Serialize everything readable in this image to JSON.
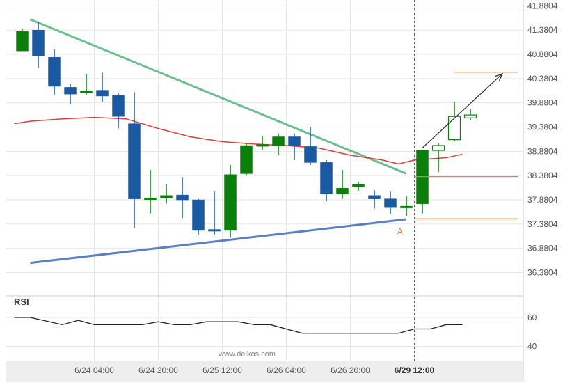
{
  "watermark": "www.delkos.com",
  "rsi_label": "RSI",
  "pattern_point_label": "A",
  "colors": {
    "bull": "#0a7f0a",
    "bear": "#1a5aa3",
    "ma": "#e23b3b",
    "upper_trend": "#6bbf8f",
    "lower_trend": "#5b7fc4",
    "levels": "#f07c3a",
    "projection": "#333333",
    "rsi_line": "#222222",
    "grid": "#e6e6e6",
    "axis_text": "#555555"
  },
  "chart_data": {
    "type": "candlestick",
    "title": "",
    "y_ticks": [
      "41.8804",
      "41.3804",
      "40.8804",
      "40.3804",
      "39.8804",
      "39.3804",
      "38.8804",
      "38.3804",
      "37.8804",
      "37.3804",
      "36.8804",
      "36.3804"
    ],
    "ylim": [
      35.9,
      42.0
    ],
    "x_ticks": [
      {
        "label": "6/24 04:00",
        "index": 4.5
      },
      {
        "label": "6/24 20:00",
        "index": 8.5
      },
      {
        "label": "6/25 12:00",
        "index": 12.5
      },
      {
        "label": "6/26 04:00",
        "index": 16.5
      },
      {
        "label": "6/26 20:00",
        "index": 20.5
      },
      {
        "label": "6/29 12:00",
        "index": 24.5,
        "bold": true
      }
    ],
    "candles": [
      {
        "o": 40.95,
        "h": 41.4,
        "l": 40.95,
        "c": 41.35
      },
      {
        "o": 41.38,
        "h": 41.55,
        "l": 40.6,
        "c": 40.85
      },
      {
        "o": 40.82,
        "h": 40.98,
        "l": 40.05,
        "c": 40.22
      },
      {
        "o": 40.2,
        "h": 40.28,
        "l": 39.85,
        "c": 40.06
      },
      {
        "o": 40.1,
        "h": 40.48,
        "l": 40.05,
        "c": 40.13
      },
      {
        "o": 40.14,
        "h": 40.5,
        "l": 39.9,
        "c": 40.02
      },
      {
        "o": 40.03,
        "h": 40.09,
        "l": 39.35,
        "c": 39.6
      },
      {
        "o": 39.45,
        "h": 40.1,
        "l": 37.3,
        "c": 37.9
      },
      {
        "o": 37.9,
        "h": 38.5,
        "l": 37.6,
        "c": 37.92
      },
      {
        "o": 37.92,
        "h": 38.2,
        "l": 37.8,
        "c": 37.97
      },
      {
        "o": 37.98,
        "h": 38.35,
        "l": 37.5,
        "c": 37.88
      },
      {
        "o": 37.88,
        "h": 37.9,
        "l": 37.15,
        "c": 37.25
      },
      {
        "o": 37.27,
        "h": 38.05,
        "l": 37.15,
        "c": 37.26
      },
      {
        "o": 37.25,
        "h": 38.6,
        "l": 37.1,
        "c": 38.4
      },
      {
        "o": 38.42,
        "h": 39.05,
        "l": 38.38,
        "c": 39.0
      },
      {
        "o": 39.01,
        "h": 39.2,
        "l": 38.9,
        "c": 39.02
      },
      {
        "o": 39.0,
        "h": 39.25,
        "l": 38.8,
        "c": 39.18
      },
      {
        "o": 39.18,
        "h": 39.25,
        "l": 38.7,
        "c": 39.0
      },
      {
        "o": 38.98,
        "h": 39.38,
        "l": 38.6,
        "c": 38.65
      },
      {
        "o": 38.65,
        "h": 38.7,
        "l": 37.85,
        "c": 38.0
      },
      {
        "o": 38.0,
        "h": 38.5,
        "l": 37.9,
        "c": 38.12
      },
      {
        "o": 38.15,
        "h": 38.25,
        "l": 38.07,
        "c": 38.2
      },
      {
        "o": 37.97,
        "h": 38.08,
        "l": 37.7,
        "c": 37.9
      },
      {
        "o": 37.9,
        "h": 38.05,
        "l": 37.58,
        "c": 37.72
      },
      {
        "o": 37.73,
        "h": 37.95,
        "l": 37.55,
        "c": 37.75
      },
      {
        "o": 37.8,
        "h": 38.85,
        "l": 37.6,
        "c": 38.9
      },
      {
        "o": 38.9,
        "h": 39.05,
        "l": 38.45,
        "c": 39.0
      },
      {
        "o": 39.12,
        "h": 39.9,
        "l": 39.1,
        "c": 39.6
      },
      {
        "o": 39.57,
        "h": 39.75,
        "l": 39.52,
        "c": 39.63
      }
    ],
    "moving_average": [
      {
        "i": -0.5,
        "v": 39.45
      },
      {
        "i": 0.5,
        "v": 39.5
      },
      {
        "i": 2.5,
        "v": 39.55
      },
      {
        "i": 4.5,
        "v": 39.58
      },
      {
        "i": 6.5,
        "v": 39.55
      },
      {
        "i": 8.5,
        "v": 39.35
      },
      {
        "i": 10.5,
        "v": 39.18
      },
      {
        "i": 12.5,
        "v": 39.08
      },
      {
        "i": 14.5,
        "v": 39.03
      },
      {
        "i": 16.5,
        "v": 39.0
      },
      {
        "i": 18.5,
        "v": 38.95
      },
      {
        "i": 20.5,
        "v": 38.8
      },
      {
        "i": 22.5,
        "v": 38.7
      },
      {
        "i": 23.5,
        "v": 38.62
      },
      {
        "i": 24.5,
        "v": 38.7
      },
      {
        "i": 26.5,
        "v": 38.75
      },
      {
        "i": 27.5,
        "v": 38.82
      }
    ],
    "upper_trendline": {
      "from": {
        "i": 0.5,
        "v": 41.6
      },
      "to": {
        "i": 24.0,
        "v": 38.42
      }
    },
    "lower_trendline": {
      "from": {
        "i": 0.5,
        "v": 36.58
      },
      "to": {
        "i": 24.0,
        "v": 37.48
      }
    },
    "levels": [
      {
        "v": 40.51,
        "from_i": 27.0,
        "to_i": 31.0
      },
      {
        "v": 38.36,
        "from_i": 24.5,
        "to_i": 31.0
      },
      {
        "v": 37.49,
        "from_i": 24.5,
        "to_i": 31.0
      }
    ],
    "projection_arrow": {
      "from": {
        "i": 25.0,
        "v": 38.95
      },
      "to": {
        "i": 30.0,
        "v": 40.48
      }
    },
    "pattern_point": {
      "i": 23.6,
      "v": 37.3
    },
    "vertical_marker_index": 24.5,
    "rsi": {
      "ticks": [
        60,
        40
      ],
      "ylim": [
        30,
        75
      ],
      "points": [
        {
          "i": -0.5,
          "v": 60
        },
        {
          "i": 0.5,
          "v": 60
        },
        {
          "i": 2.5,
          "v": 55
        },
        {
          "i": 3.5,
          "v": 58
        },
        {
          "i": 4.5,
          "v": 55
        },
        {
          "i": 5.5,
          "v": 55
        },
        {
          "i": 7.5,
          "v": 55
        },
        {
          "i": 8.5,
          "v": 57
        },
        {
          "i": 9.5,
          "v": 55
        },
        {
          "i": 10.5,
          "v": 55
        },
        {
          "i": 11.5,
          "v": 57
        },
        {
          "i": 13.5,
          "v": 57
        },
        {
          "i": 14.5,
          "v": 55
        },
        {
          "i": 15.5,
          "v": 55
        },
        {
          "i": 17.5,
          "v": 49
        },
        {
          "i": 20.5,
          "v": 49
        },
        {
          "i": 23.5,
          "v": 49
        },
        {
          "i": 24.5,
          "v": 52
        },
        {
          "i": 25.5,
          "v": 52
        },
        {
          "i": 26.5,
          "v": 55
        },
        {
          "i": 27.5,
          "v": 55
        }
      ]
    }
  }
}
